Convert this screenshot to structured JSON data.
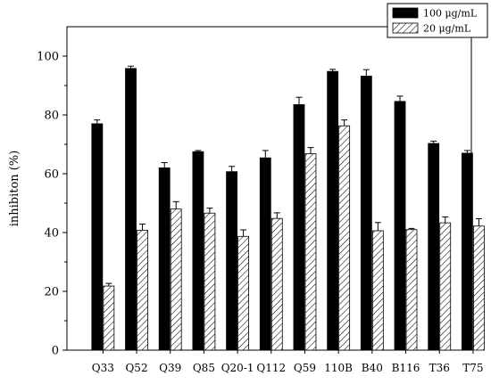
{
  "chart_data": {
    "type": "bar",
    "categories": [
      "Q33",
      "Q52",
      "Q39",
      "Q85",
      "Q20-1",
      "Q112",
      "Q59",
      "110B",
      "B40",
      "B116",
      "T36",
      "T75"
    ],
    "series": [
      {
        "name": "100 μg/mL",
        "values": [
          77,
          95.8,
          62,
          67.5,
          60.7,
          65.4,
          83.5,
          94.8,
          93.2,
          84.6,
          70.3,
          67
        ],
        "errors": [
          1.3,
          0.8,
          1.8,
          0.4,
          1.8,
          2.5,
          2.5,
          0.7,
          2.2,
          1.8,
          0.8,
          0.9
        ],
        "fill": "#000000"
      },
      {
        "name": "20  μg/mL",
        "values": [
          21.8,
          40.8,
          48,
          46.6,
          38.7,
          44.8,
          66.8,
          76.3,
          40.6,
          41,
          43.3,
          42.2
        ],
        "errors": [
          0.9,
          2.1,
          2.5,
          1.7,
          2.2,
          1.9,
          2.1,
          2,
          2.8,
          0.4,
          2,
          2.5
        ],
        "fill": "hatch"
      }
    ],
    "title": "",
    "xlabel": "",
    "ylabel": "inhibiton (%)",
    "ylim": [
      0,
      110
    ],
    "yticks": [
      0,
      20,
      40,
      60,
      80,
      100
    ],
    "grid": false,
    "legend": "top-right"
  }
}
